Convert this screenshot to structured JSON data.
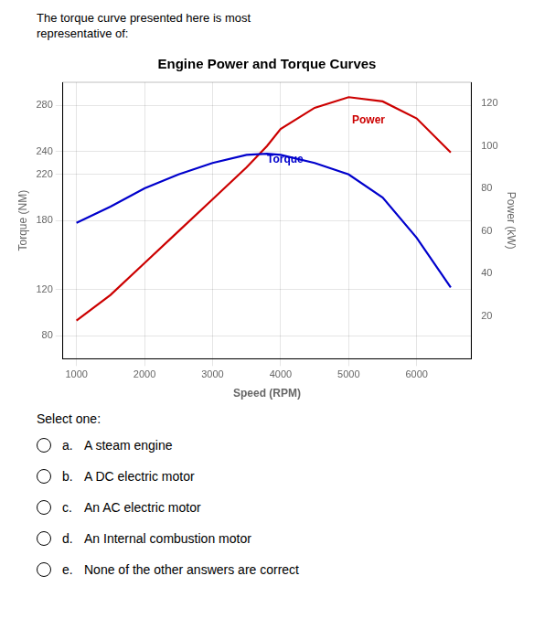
{
  "header": "The torque curve presented here is most\nrepresentative of:",
  "chart_data": {
    "type": "line",
    "title": "Engine Power and Torque Curves",
    "x_label": "Speed (RPM)",
    "y_label": "Torque (NM)",
    "y2_label": "Power (kW)",
    "x": [
      1000,
      1500,
      2000,
      2500,
      3000,
      3500,
      3800,
      4000,
      4500,
      5000,
      5500,
      6000,
      6500
    ],
    "series": [
      {
        "color": "#0000cc",
        "values": [
          178,
          192,
          208,
          220,
          230,
          237,
          238,
          237,
          230,
          220,
          200,
          165,
          122
        ]
      },
      {
        "color": "#cc0000",
        "axis": "y2",
        "values": [
          18,
          30,
          45,
          60,
          75,
          90,
          100,
          108,
          118,
          123,
          121,
          113,
          97
        ]
      }
    ],
    "xlim": [
      800,
      6800
    ],
    "xticks": [
      1000,
      2000,
      3000,
      4000,
      5000,
      6000
    ],
    "ylim": [
      60,
      300
    ],
    "yticks": [
      80,
      120,
      180,
      220,
      240,
      280
    ],
    "y2lim": [
      0,
      130
    ],
    "y2ticks": [
      20,
      40,
      60,
      80,
      100,
      120
    ],
    "grid": true,
    "annotations": [
      {
        "text": "Torque",
        "x": 3800,
        "y": 228,
        "color": "#0000cc"
      },
      {
        "text": "Power",
        "x": 5050,
        "y": 262,
        "color": "#cc0000"
      }
    ]
  },
  "select_text": "Select one:",
  "options": [
    [
      "a.",
      "A steam engine"
    ],
    [
      "b.",
      "A DC electric motor"
    ],
    [
      "c.",
      "An AC electric motor"
    ],
    [
      "d.",
      "An Internal combustion motor"
    ],
    [
      "e.",
      "None of the other answers are correct"
    ]
  ]
}
